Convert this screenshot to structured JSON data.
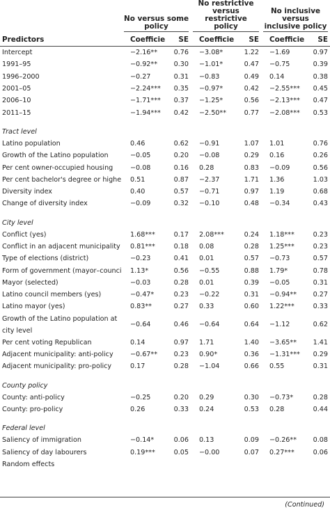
{
  "table": {
    "groups": [
      "No versus some policy",
      "No restrictive versus restrictive policy",
      "No inclusive versus inclusive policy"
    ],
    "columns": [
      "Predictors",
      "Coefficient",
      "SE",
      "Coefficient",
      "SE",
      "Coefficient",
      "SE"
    ],
    "sections": [
      {
        "rows": [
          [
            "Intercept",
            "−2.16**",
            "0.76",
            "−3.08*",
            "1.22",
            "−1.69",
            "0.97"
          ],
          [
            "1991–95",
            "−0.92**",
            "0.30",
            "−1.01*",
            "0.47",
            "−0.75",
            "0.39"
          ],
          [
            "1996–2000",
            "−0.27",
            "0.31",
            "−0.83",
            "0.49",
            "0.14",
            "0.38"
          ],
          [
            "2001–05",
            "−2.24***",
            "0.35",
            "−0.97*",
            "0.42",
            "−2.55***",
            "0.45"
          ],
          [
            "2006–10",
            "−1.71***",
            "0.37",
            "−1.25*",
            "0.56",
            "−2.13***",
            "0.47"
          ],
          [
            "2011–15",
            "−1.94***",
            "0.42",
            "−2.50**",
            "0.77",
            "−2.08***",
            "0.53"
          ]
        ]
      },
      {
        "title": "Tract level",
        "rows": [
          [
            "Latino population",
            "0.46",
            "0.62",
            "−0.91",
            "1.07",
            "1.01",
            "0.76"
          ],
          [
            "Growth of the Latino population",
            "−0.05",
            "0.20",
            "−0.08",
            "0.29",
            "0.16",
            "0.26"
          ],
          [
            "Per cent owner-occupied housing",
            "−0.08",
            "0.16",
            "0.28",
            "0.83",
            "−0.09",
            "0.56"
          ],
          [
            "Per cent bachelor's degree or higher",
            "0.51",
            "0.87",
            "−2.37",
            "1.71",
            "1.36",
            "1.03"
          ],
          [
            "Diversity index",
            "0.40",
            "0.57",
            "−0.71",
            "0.97",
            "1.19",
            "0.68"
          ],
          [
            "Change of diversity index",
            "−0.09",
            "0.32",
            "−0.10",
            "0.48",
            "−0.34",
            "0.43"
          ]
        ]
      },
      {
        "title": "City level",
        "rows": [
          [
            "Conflict (yes)",
            "1.68***",
            "0.17",
            "2.08***",
            "0.24",
            "1.18***",
            "0.23"
          ],
          [
            "Conflict in an adjacent municipality",
            "0.81***",
            "0.18",
            "0.08",
            "0.28",
            "1.25***",
            "0.23"
          ],
          [
            "Type of elections (district)",
            "−0.23",
            "0.41",
            "0.01",
            "0.57",
            "−0.73",
            "0.57"
          ],
          [
            "Form of government (mayor–council)",
            "1.13*",
            "0.56",
            "−0.55",
            "0.88",
            "1.79*",
            "0.78"
          ],
          [
            "Mayor (selected)",
            "−0.03",
            "0.28",
            "0.01",
            "0.39",
            "−0.05",
            "0.31"
          ],
          [
            "Latino council members (yes)",
            "−0.47*",
            "0.23",
            "−0.22",
            "0.31",
            "−0.94**",
            "0.27"
          ],
          [
            "Latino mayor (yes)",
            "0.83**",
            "0.27",
            "0.33",
            "0.60",
            "1.22***",
            "0.33"
          ],
          [
            "Growth of the Latino population at city level",
            "−0.64",
            "0.46",
            "−0.64",
            "0.64",
            "−1.12",
            "0.62"
          ],
          [
            "Per cent voting Republican",
            "0.14",
            "0.97",
            "1.71",
            "1.40",
            "−3.65**",
            "1.41"
          ],
          [
            "Adjacent municipality: anti-policy",
            "−0.67**",
            "0.23",
            "0.90*",
            "0.36",
            "−1.31***",
            "0.29"
          ],
          [
            "Adjacent municipality: pro-policy",
            "0.17",
            "0.28",
            "−1.04",
            "0.66",
            "0.55",
            "0.31"
          ]
        ]
      },
      {
        "title": "County policy",
        "rows": [
          [
            "County: anti-policy",
            "−0.25",
            "0.20",
            "0.29",
            "0.30",
            "−0.73*",
            "0.28"
          ],
          [
            "County: pro-policy",
            "0.26",
            "0.33",
            "0.24",
            "0.53",
            "0.28",
            "0.44"
          ]
        ]
      },
      {
        "title": "Federal level",
        "rows": [
          [
            "Saliency of immigration",
            "−0.14*",
            "0.06",
            "0.13",
            "0.09",
            "−0.26**",
            "0.08"
          ],
          [
            "Saliency of day labourers",
            "0.19***",
            "0.05",
            "−0.00",
            "0.07",
            "0.27***",
            "0.06"
          ],
          [
            "Random effects"
          ]
        ]
      }
    ],
    "footer_unused": null
  },
  "footer": "(Continued)"
}
